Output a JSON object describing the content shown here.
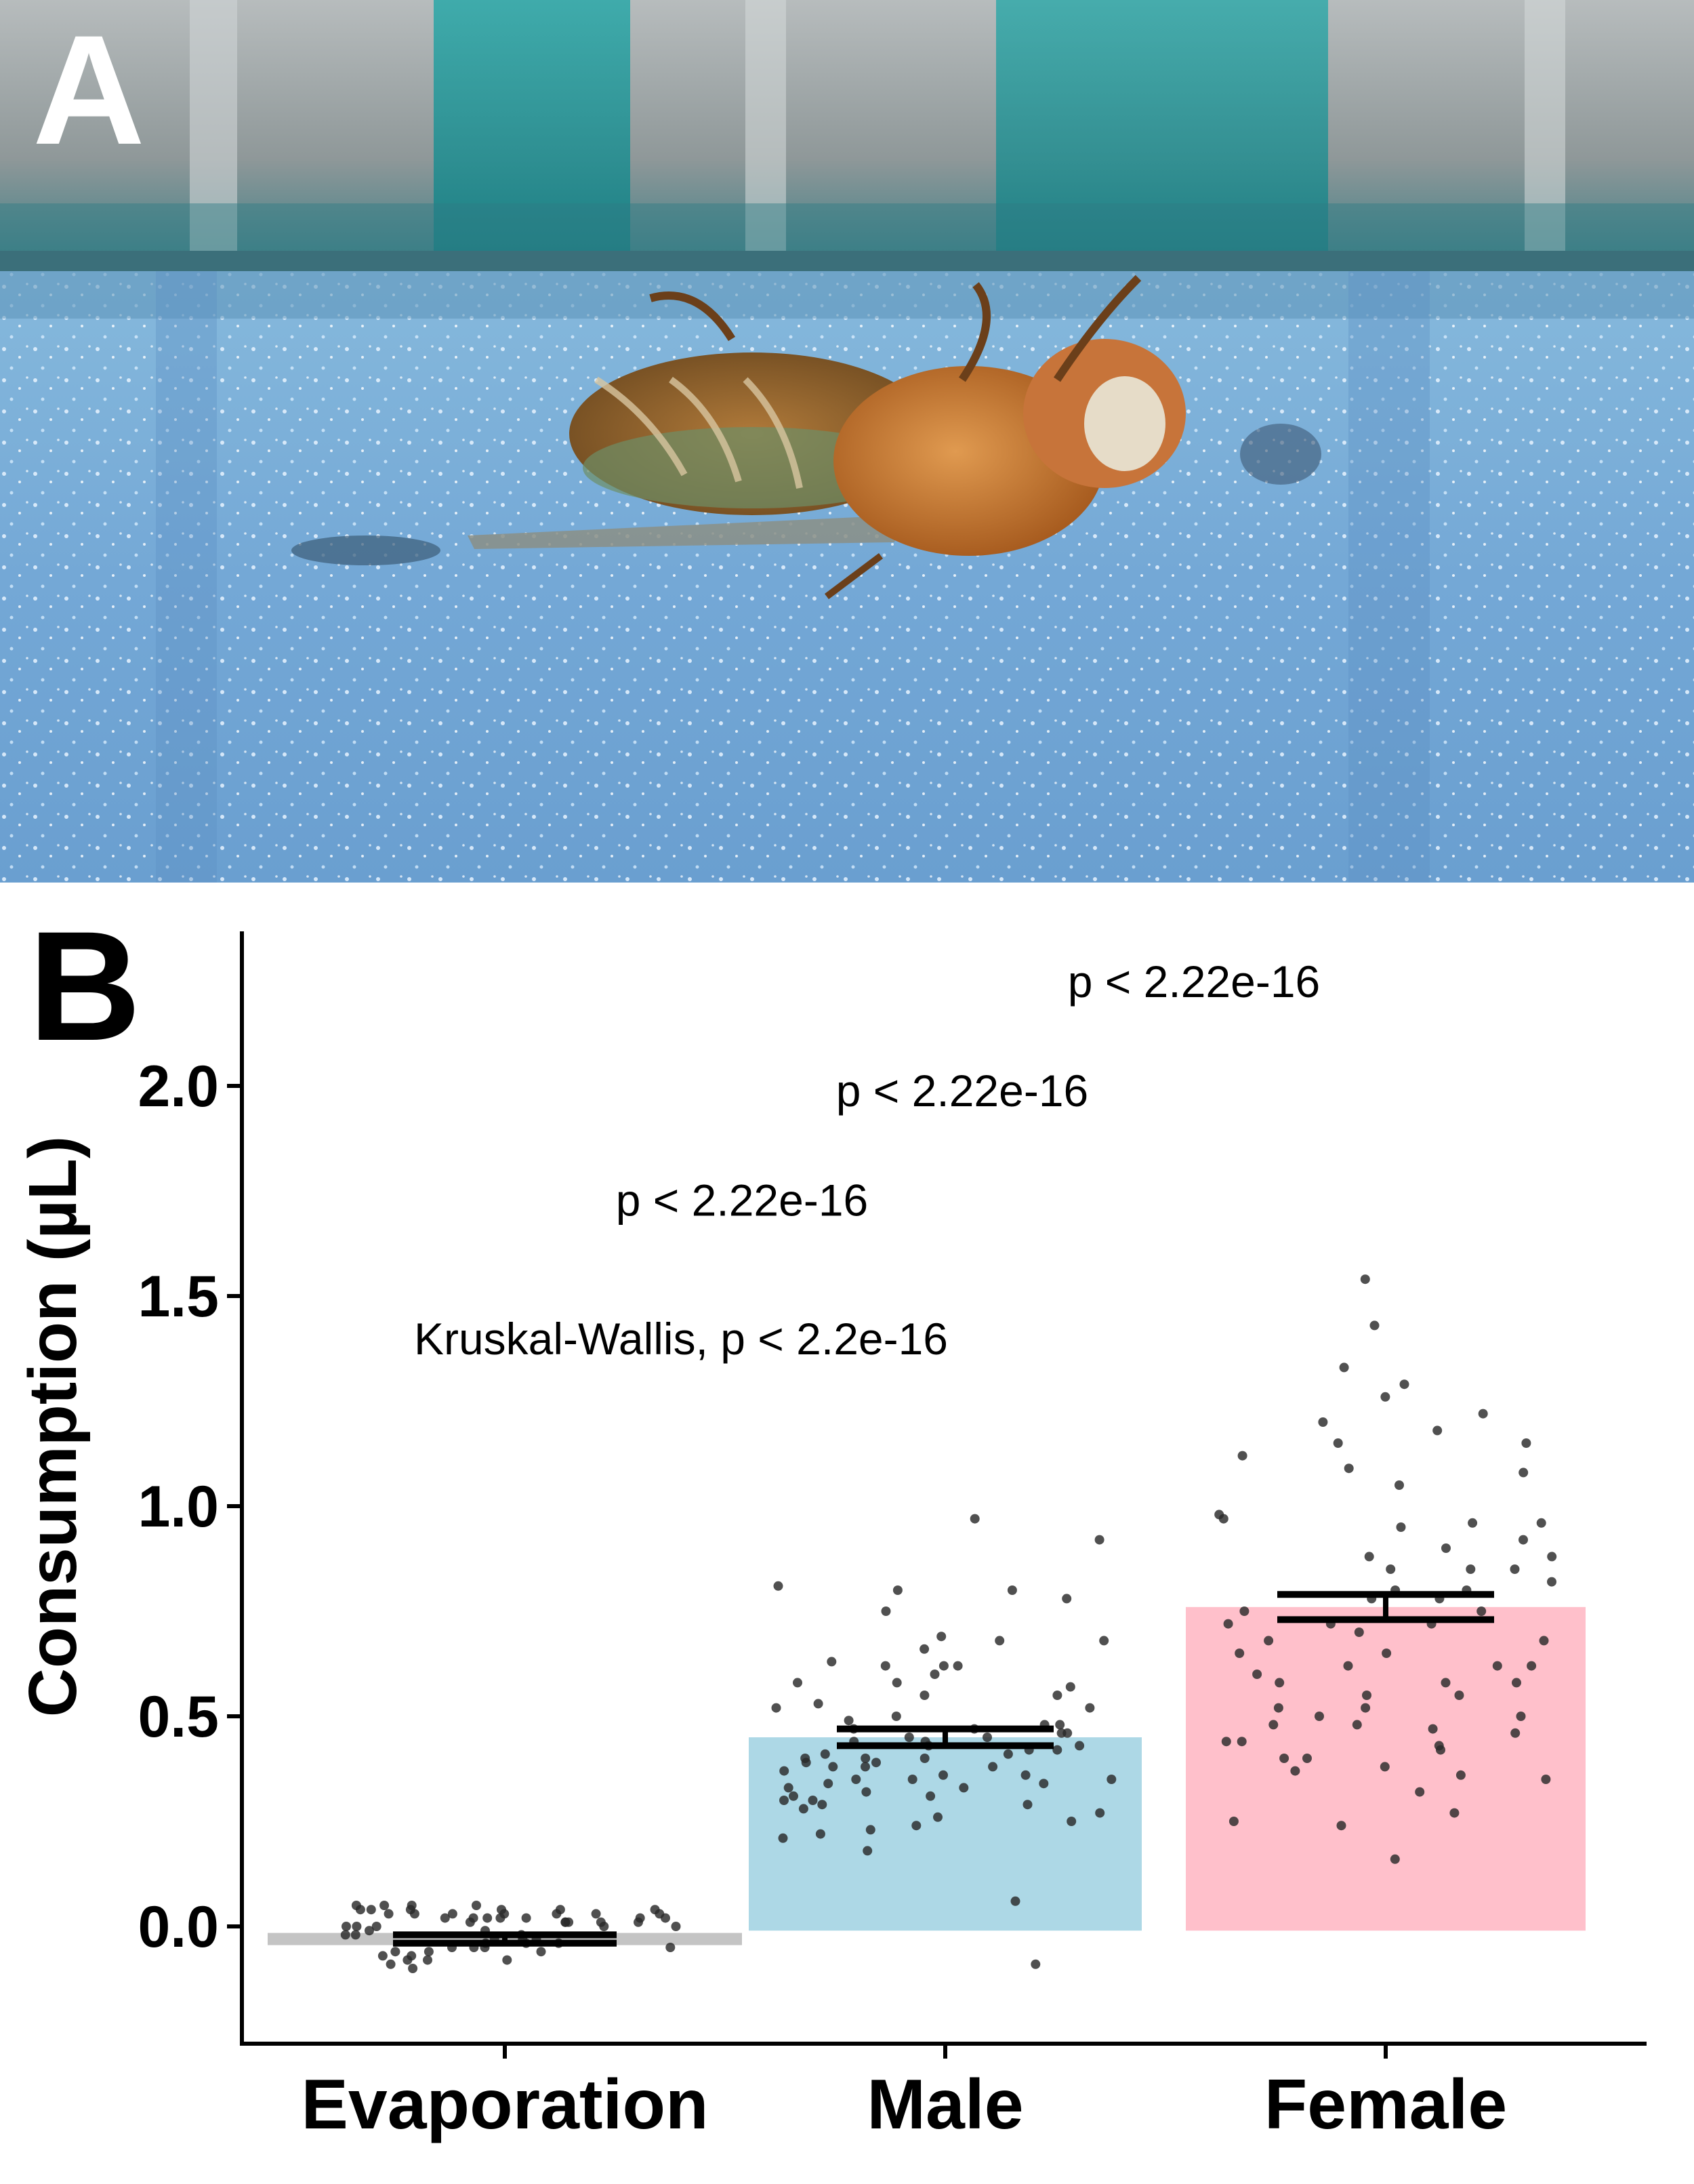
{
  "panel_a": {
    "label": "A"
  },
  "panel_b": {
    "label": "B"
  },
  "chart_data": {
    "type": "bar",
    "ylabel": "Consumption (µL)",
    "xlabel": "",
    "categories": [
      "Evaporation",
      "Male",
      "Female"
    ],
    "ylim": [
      -0.25,
      2.35
    ],
    "yticks": [
      "0.0",
      "0.5",
      "1.0",
      "1.5",
      "2.0"
    ],
    "bar_colors": [
      "#c4c4c4",
      "#add8e6",
      "#ffc0cb"
    ],
    "values": [
      -0.03,
      0.45,
      0.76
    ],
    "error_bars": [
      {
        "low": -0.04,
        "high": -0.02
      },
      {
        "low": 0.43,
        "high": 0.47
      },
      {
        "low": 0.73,
        "high": 0.79
      }
    ],
    "annotations": [
      {
        "text": "Kruskal-Wallis, p < 2.2e-16",
        "x": "Evaporation",
        "y": 1.4
      },
      {
        "text": "p < 2.22e-16",
        "x": "Evaporation-Male",
        "y": 1.73
      },
      {
        "text": "p < 2.22e-16",
        "x": "Male",
        "y": 1.99
      },
      {
        "text": "p < 2.22e-16",
        "x": "Male-Female",
        "y": 2.25
      }
    ],
    "points": {
      "Evaporation": [
        0.04,
        0.02,
        -0.01,
        0.03,
        -0.05,
        -0.08,
        0.05,
        0.01,
        -0.03,
        0.02,
        -0.06,
        0.0,
        0.04,
        -0.02,
        0.03,
        -0.07,
        0.01,
        0.05,
        -0.04,
        0.02,
        -0.09,
        0.0,
        0.03,
        -0.05,
        0.04,
        -0.01,
        0.02,
        -0.06,
        0.05,
        -0.03,
        0.01,
        -0.08,
        0.03,
        0.0,
        -0.04,
        0.04,
        -0.02,
        0.02,
        -0.07,
        0.01,
        0.03,
        -0.05,
        0.0,
        0.04,
        -0.1,
        0.02,
        -0.03,
        0.05,
        -0.06,
        0.01,
        0.03,
        -0.04,
        0.0,
        -0.08,
        0.02,
        0.04,
        -0.02,
        -0.05,
        0.01,
        0.03
      ],
      "Male": [
        0.92,
        0.75,
        0.66,
        0.62,
        0.55,
        0.48,
        0.43,
        0.4,
        0.38,
        0.35,
        0.29,
        0.22,
        0.18,
        -0.09,
        0.78,
        0.68,
        0.52,
        0.46,
        0.42,
        0.38,
        0.33,
        0.3,
        0.62,
        0.58,
        0.49,
        0.45,
        0.41,
        0.36,
        0.32,
        0.27,
        0.81,
        0.8,
        0.47,
        0.44,
        0.39,
        0.35,
        0.31,
        0.25,
        0.97,
        0.6,
        0.53,
        0.48,
        0.43,
        0.4,
        0.37,
        0.34,
        0.06,
        0.8,
        0.68,
        0.57,
        0.47,
        0.42,
        0.38,
        0.33,
        0.28,
        0.21,
        0.62,
        0.55,
        0.46,
        0.41,
        0.36,
        0.31,
        0.23,
        0.69,
        0.58,
        0.5,
        0.44,
        0.39,
        0.34,
        0.29,
        0.63,
        0.52,
        0.45,
        0.4,
        0.35,
        0.3,
        0.26,
        0.24
      ],
      "Female": [
        0.98,
        0.96,
        0.88,
        0.8,
        0.72,
        0.62,
        0.55,
        0.47,
        0.4,
        1.15,
        1.12,
        0.85,
        0.75,
        0.65,
        0.58,
        0.5,
        0.44,
        0.32,
        1.54,
        1.33,
        1.05,
        0.92,
        0.8,
        0.7,
        0.6,
        0.5,
        0.42,
        1.26,
        1.08,
        0.9,
        0.78,
        0.68,
        0.58,
        0.48,
        0.38,
        0.27,
        1.22,
        1.15,
        0.95,
        0.82,
        0.72,
        0.62,
        0.52,
        0.44,
        0.35,
        1.29,
        1.18,
        1.09,
        0.85,
        0.75,
        0.65,
        0.55,
        0.46,
        0.36,
        0.25,
        0.24,
        1.43,
        0.88,
        0.78,
        0.68,
        0.58,
        0.48,
        0.4,
        0.16,
        1.2,
        0.97,
        0.96,
        0.85,
        0.72,
        0.62,
        0.52,
        0.43,
        0.37
      ]
    }
  }
}
